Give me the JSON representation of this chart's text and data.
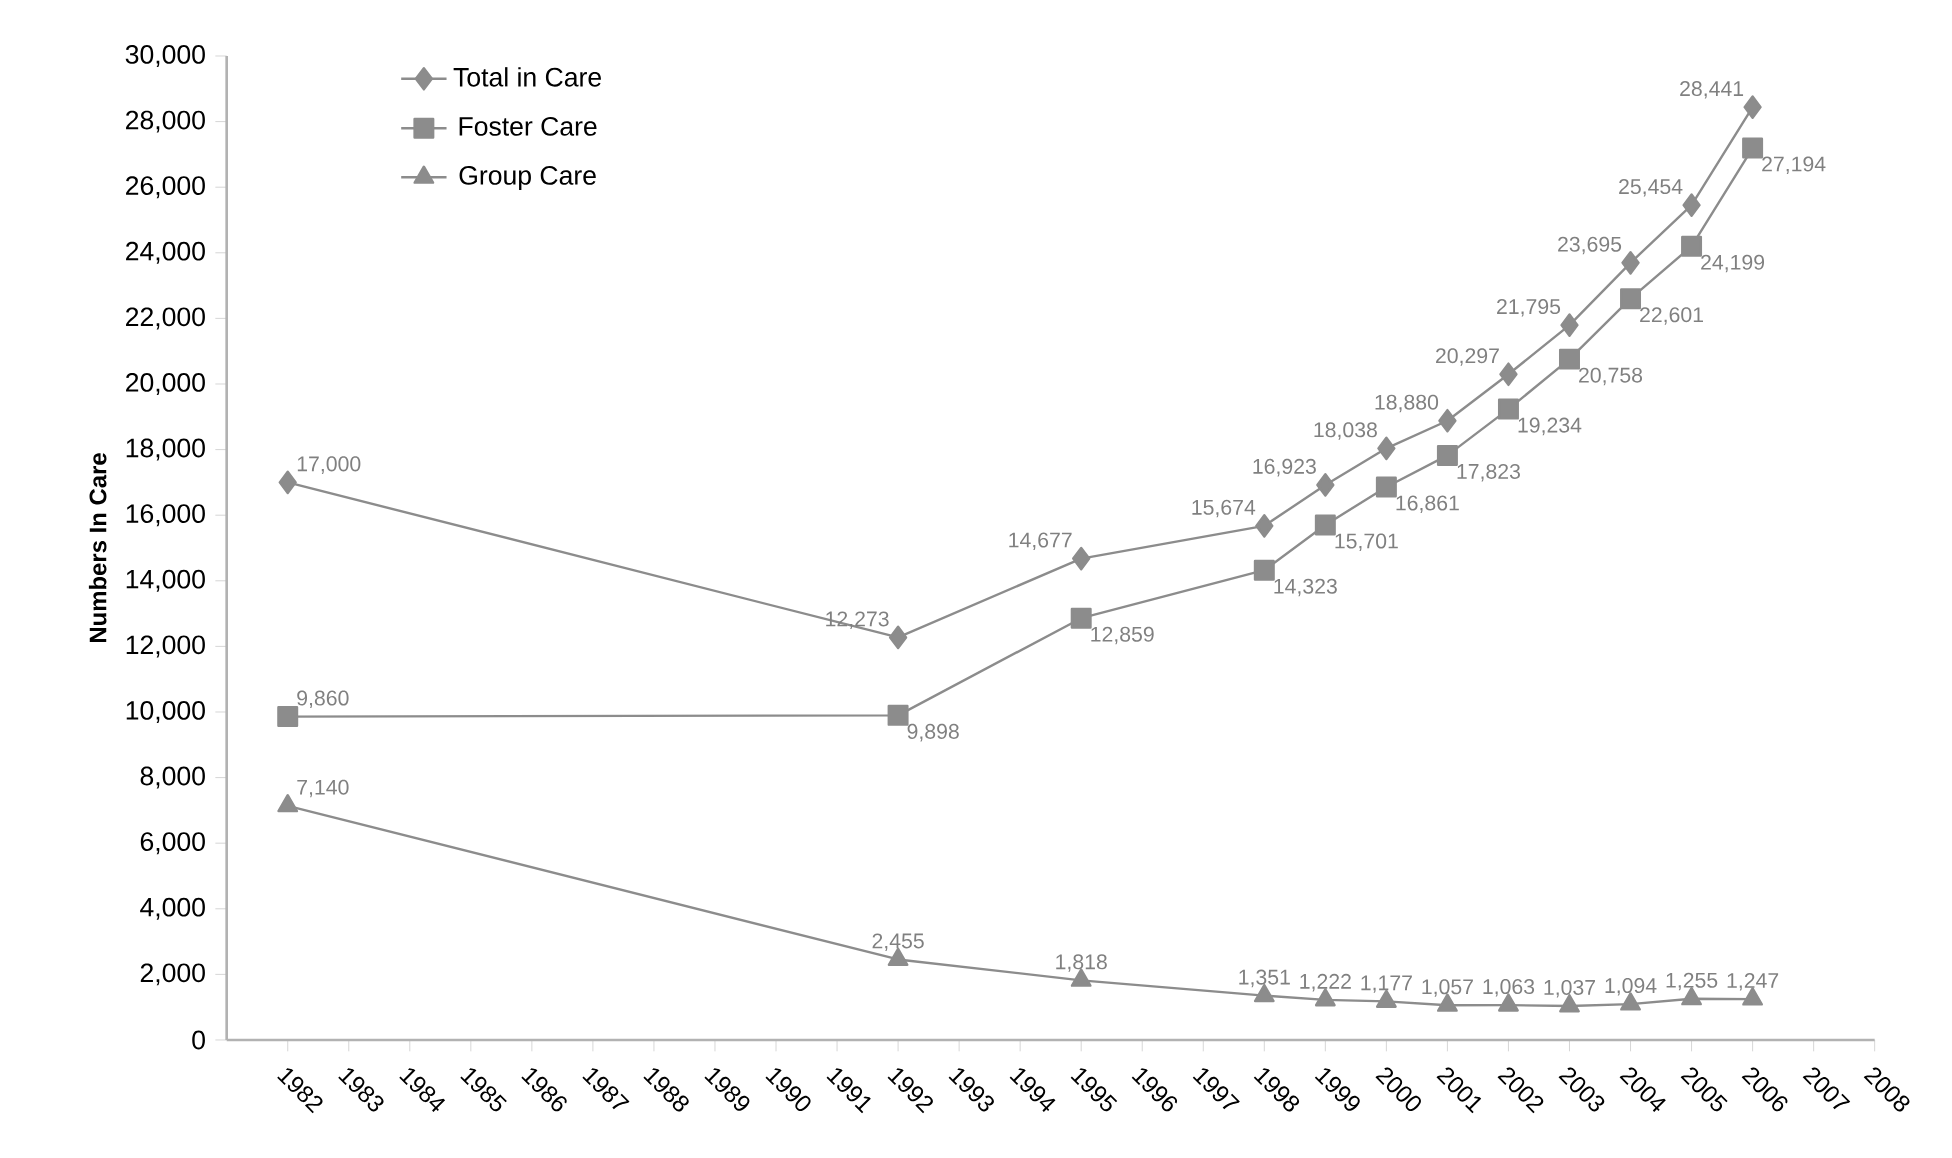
{
  "chart_data": {
    "type": "line",
    "ylabel": "Numbers In Care",
    "x": [
      1982,
      1992,
      1995,
      1998,
      1999,
      2000,
      2001,
      2002,
      2003,
      2004,
      2005,
      2006
    ],
    "series": [
      {
        "name": "Total in Care",
        "color": "#8c8c8c",
        "marker": "diamond",
        "values": [
          17000,
          12273,
          14677,
          15674,
          16923,
          18038,
          18880,
          20297,
          21795,
          23695,
          25454,
          28441
        ],
        "value_labels": [
          "17,000",
          "12,273",
          "14,677",
          "15,674",
          "16,923",
          "18,038",
          "18,880",
          "20,297",
          "21,795",
          "23,695",
          "25,454",
          "28,441"
        ]
      },
      {
        "name": "Foster Care",
        "color": "#8c8c8c",
        "marker": "square",
        "values": [
          9860,
          9898,
          12859,
          14323,
          15701,
          16861,
          17823,
          19234,
          20758,
          22601,
          24199,
          27194
        ],
        "value_labels": [
          "9,860",
          "9,898",
          "12,859",
          "14,323",
          "15,701",
          "16,861",
          "17,823",
          "19,234",
          "20,758",
          "22,601",
          "24,199",
          "27,194"
        ]
      },
      {
        "name": "Group Care",
        "color": "#8c8c8c",
        "marker": "triangle",
        "values": [
          7140,
          2455,
          1818,
          1351,
          1222,
          1177,
          1057,
          1063,
          1037,
          1094,
          1255,
          1247
        ],
        "value_labels": [
          "7,140",
          "2,455",
          "1,818",
          "1,351",
          "1,222",
          "1,177",
          "1,057",
          "1,063",
          "1,037",
          "1,094",
          "1,255",
          "1,247"
        ]
      }
    ],
    "xlim": [
      1981,
      2008
    ],
    "xticks": [
      1982,
      1983,
      1984,
      1985,
      1986,
      1987,
      1988,
      1989,
      1990,
      1991,
      1992,
      1993,
      1994,
      1995,
      1996,
      1997,
      1998,
      1999,
      2000,
      2001,
      2002,
      2003,
      2004,
      2005,
      2006,
      2007,
      2008
    ],
    "ylim": [
      0,
      30000
    ],
    "yticks": [
      {
        "value": 0,
        "label": "0"
      },
      {
        "value": 2000,
        "label": "2,000"
      },
      {
        "value": 4000,
        "label": "4,000"
      },
      {
        "value": 6000,
        "label": "6,000"
      },
      {
        "value": 8000,
        "label": "8,000"
      },
      {
        "value": 10000,
        "label": "10,000"
      },
      {
        "value": 12000,
        "label": "12,000"
      },
      {
        "value": 14000,
        "label": "14,000"
      },
      {
        "value": 16000,
        "label": "16,000"
      },
      {
        "value": 18000,
        "label": "18,000"
      },
      {
        "value": 20000,
        "label": "20,000"
      },
      {
        "value": 22000,
        "label": "22,000"
      },
      {
        "value": 24000,
        "label": "24,000"
      },
      {
        "value": 26000,
        "label": "26,000"
      },
      {
        "value": 28000,
        "label": "28,000"
      },
      {
        "value": 30000,
        "label": "30,000"
      }
    ],
    "grid": false,
    "legend": "top left",
    "line_style": "solid"
  }
}
